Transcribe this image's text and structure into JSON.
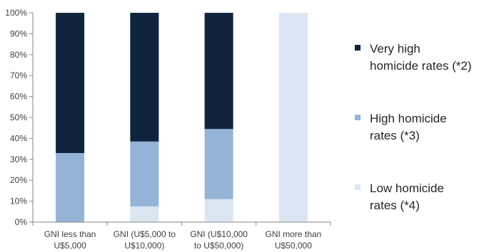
{
  "chart_data": {
    "type": "bar",
    "stacked": true,
    "categories": [
      [
        "GNI less than",
        "U$5,000"
      ],
      [
        "GNI (U$5,000 to",
        "U$10,000)"
      ],
      [
        "GNI (U$10,000",
        "to U$50,000)"
      ],
      [
        "GNI more than",
        "U$50,000"
      ]
    ],
    "ylim": [
      0,
      100
    ],
    "yticks": [
      "0%",
      "10%",
      "20%",
      "30%",
      "40%",
      "50%",
      "60%",
      "70%",
      "80%",
      "90%",
      "100%"
    ],
    "series": [
      {
        "name": "Low homicide rates (*4)",
        "color": "#dce6f2",
        "values": [
          0,
          7.5,
          11,
          100
        ]
      },
      {
        "name": "High homicide rates (*3)",
        "color": "#95b3d7",
        "values": [
          33,
          31,
          33.5,
          0
        ]
      },
      {
        "name": "Very high homicide rates (*2)",
        "color": "#10243e",
        "values": [
          67,
          61.5,
          55.5,
          0
        ]
      }
    ],
    "grid": false,
    "legend_position": "right"
  },
  "legend": [
    {
      "lines": [
        "Very high",
        "homicide rates (*2)"
      ],
      "color": "#10243e"
    },
    {
      "lines": [
        "High homicide",
        "rates (*3)"
      ],
      "color": "#95b3d7"
    },
    {
      "lines": [
        "Low homicide",
        "rates (*4)"
      ],
      "color": "#dce6f2"
    }
  ]
}
